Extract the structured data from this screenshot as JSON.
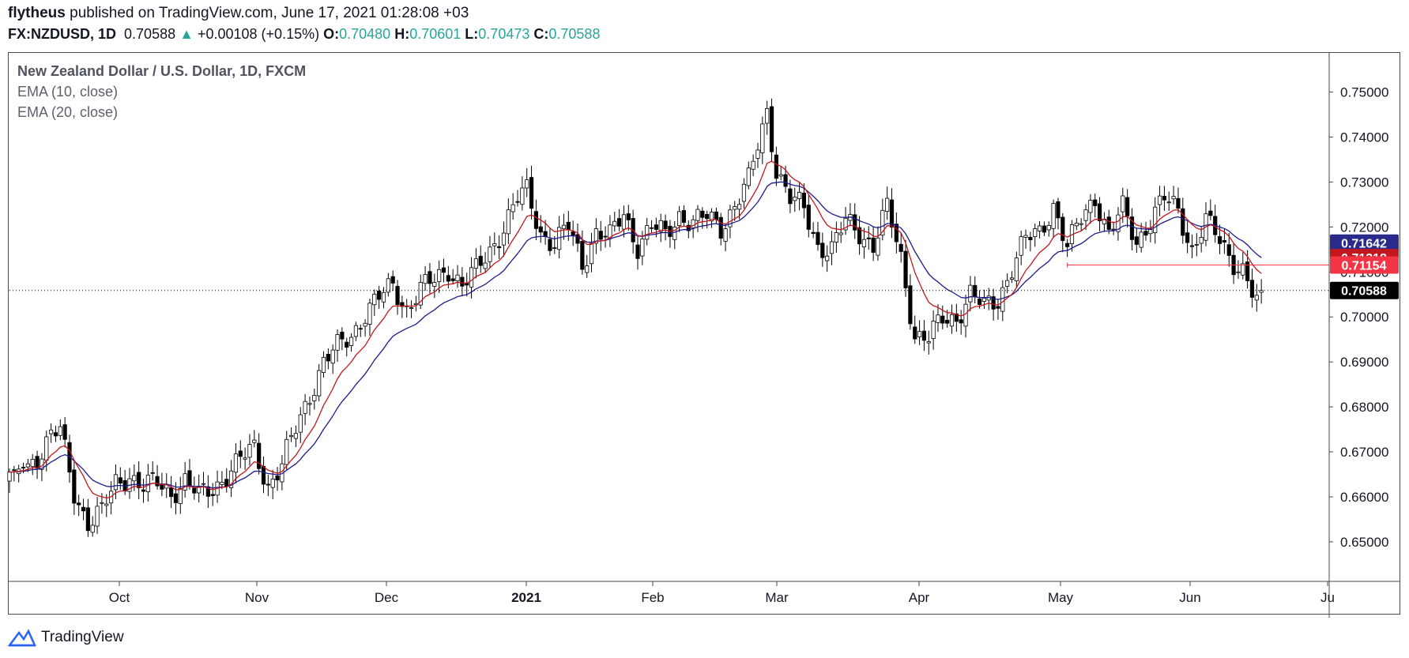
{
  "header": {
    "author": "flytheus",
    "published": "published on TradingView.com, June 17, 2021 01:28:08 +03",
    "symbol": "FX:NZDUSD, 1D",
    "last": "0.70588",
    "change": "+0.00108 (+0.15%)",
    "o_label": "O:",
    "o_value": "0.70480",
    "h_label": "H:",
    "h_value": "0.70601",
    "l_label": "L:",
    "l_value": "0.70473",
    "c_label": "C:",
    "c_value": "0.70588"
  },
  "legend": {
    "title": "New Zealand Dollar / U.S. Dollar, 1D, FXCM",
    "ema1": "EMA (10, close)",
    "ema2": "EMA (20, close)"
  },
  "footer": {
    "brand": "TradingView"
  },
  "colors": {
    "ema10": "#c2181d",
    "ema20": "#1c1c8c",
    "ema20_badge": "#2a2a8a",
    "ema10_badge": "#c2181d",
    "level_badge": "#f23645",
    "last_badge": "#000000"
  },
  "chart_data": {
    "type": "candlestick",
    "title": "New Zealand Dollar / U.S. Dollar, 1D, FXCM",
    "ylim": [
      0.6412,
      0.7587
    ],
    "y_ticks": [
      "0.75000",
      "0.74000",
      "0.73000",
      "0.72000",
      "0.71000",
      "0.70000",
      "0.69000",
      "0.68000",
      "0.67000",
      "0.66000",
      "0.65000"
    ],
    "x_ticks": [
      "Oct",
      "Nov",
      "Dec",
      "2021",
      "Feb",
      "Mar",
      "Apr",
      "May",
      "Jun",
      "Ju"
    ],
    "close_path": [
      [
        0,
        0.6655
      ],
      [
        3,
        0.6665
      ],
      [
        6,
        0.669
      ],
      [
        9,
        0.6735
      ],
      [
        11,
        0.6745
      ],
      [
        14,
        0.661
      ],
      [
        17,
        0.6545
      ],
      [
        20,
        0.6565
      ],
      [
        23,
        0.663
      ],
      [
        26,
        0.665
      ],
      [
        29,
        0.662
      ],
      [
        32,
        0.663
      ],
      [
        35,
        0.661
      ],
      [
        38,
        0.6635
      ],
      [
        41,
        0.66
      ],
      [
        44,
        0.662
      ],
      [
        47,
        0.665
      ],
      [
        50,
        0.668
      ],
      [
        53,
        0.671
      ],
      [
        56,
        0.6625
      ],
      [
        59,
        0.667
      ],
      [
        62,
        0.675
      ],
      [
        65,
        0.683
      ],
      [
        68,
        0.69
      ],
      [
        71,
        0.693
      ],
      [
        74,
        0.696
      ],
      [
        77,
        0.701
      ],
      [
        80,
        0.704
      ],
      [
        83,
        0.707
      ],
      [
        86,
        0.702
      ],
      [
        89,
        0.706
      ],
      [
        92,
        0.708
      ],
      [
        95,
        0.711
      ],
      [
        98,
        0.707
      ],
      [
        101,
        0.71
      ],
      [
        104,
        0.715
      ],
      [
        107,
        0.72
      ],
      [
        110,
        0.726
      ],
      [
        112,
        0.728
      ],
      [
        115,
        0.719
      ],
      [
        118,
        0.716
      ],
      [
        121,
        0.72
      ],
      [
        124,
        0.712
      ],
      [
        127,
        0.719
      ],
      [
        130,
        0.7175
      ],
      [
        133,
        0.723
      ],
      [
        136,
        0.716
      ],
      [
        139,
        0.72
      ],
      [
        142,
        0.718
      ],
      [
        145,
        0.723
      ],
      [
        148,
        0.721
      ],
      [
        151,
        0.722
      ],
      [
        154,
        0.72
      ],
      [
        157,
        0.725
      ],
      [
        160,
        0.73
      ],
      [
        162,
        0.738
      ],
      [
        164,
        0.746
      ],
      [
        166,
        0.733
      ],
      [
        169,
        0.726
      ],
      [
        172,
        0.724
      ],
      [
        175,
        0.716
      ],
      [
        178,
        0.715
      ],
      [
        181,
        0.721
      ],
      [
        184,
        0.719
      ],
      [
        187,
        0.716
      ],
      [
        190,
        0.724
      ],
      [
        193,
        0.713
      ],
      [
        196,
        0.696
      ],
      [
        199,
        0.695
      ],
      [
        202,
        0.6995
      ],
      [
        205,
        0.7
      ],
      [
        208,
        0.705
      ],
      [
        211,
        0.702
      ],
      [
        214,
        0.704
      ],
      [
        217,
        0.711
      ],
      [
        220,
        0.717
      ],
      [
        223,
        0.719
      ],
      [
        226,
        0.725
      ],
      [
        229,
        0.715
      ],
      [
        232,
        0.722
      ],
      [
        235,
        0.727
      ],
      [
        238,
        0.718
      ],
      [
        241,
        0.724
      ],
      [
        244,
        0.717
      ],
      [
        247,
        0.7215
      ],
      [
        250,
        0.726
      ],
      [
        253,
        0.724
      ],
      [
        256,
        0.715
      ],
      [
        259,
        0.721
      ],
      [
        262,
        0.717
      ],
      [
        265,
        0.7125
      ],
      [
        267,
        0.7105
      ],
      [
        269,
        0.705
      ],
      [
        271,
        0.7059
      ]
    ],
    "n_bars": 273,
    "last_index": 271,
    "horizontal_level": {
      "value": 0.71154,
      "from_index": 229
    },
    "series": [
      {
        "name": "EMA (10, close)",
        "last": "0.71318"
      },
      {
        "name": "EMA (20, close)",
        "last": "0.71642"
      }
    ],
    "price_badges": [
      {
        "label": "0.71642",
        "value": 0.71642,
        "kind": "ema20"
      },
      {
        "label": "0.71318",
        "value": 0.71318,
        "kind": "ema10"
      },
      {
        "label": "0.71154",
        "value": 0.71154,
        "kind": "level"
      },
      {
        "label": "0.70588",
        "value": 0.70588,
        "kind": "last"
      }
    ],
    "last_price": 0.70588
  }
}
